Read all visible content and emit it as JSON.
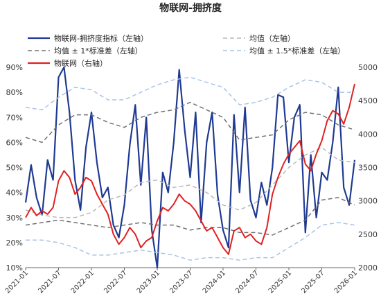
{
  "chart_data": {
    "type": "line",
    "title": "物联网-拥挤度",
    "x_range": [
      "2021-01",
      "2026-01"
    ],
    "x_ticks": [
      "2021-01",
      "2021-07",
      "2022-01",
      "2022-07",
      "2023-01",
      "2023-07",
      "2024-01",
      "2024-07",
      "2025-01",
      "2025-07",
      "2026-01"
    ],
    "y_left": {
      "ticks": [
        "10%",
        "20%",
        "30%",
        "40%",
        "50%",
        "60%",
        "70%",
        "80%",
        "90%"
      ],
      "range": [
        10,
        90
      ],
      "unit": "%"
    },
    "y_right": {
      "ticks": [
        "2000",
        "2500",
        "3000",
        "3500",
        "4000",
        "4500",
        "5000"
      ],
      "range": [
        2000,
        5000
      ]
    },
    "legend_position": "top",
    "series": [
      {
        "name": "物联网-拥挤度指标（左轴）",
        "axis": "left",
        "color": "#1f3a93",
        "style": "solid",
        "width": 2.2,
        "points": [
          [
            "2021-01",
            36
          ],
          [
            "2021-02",
            51
          ],
          [
            "2021-03",
            38
          ],
          [
            "2021-04",
            31
          ],
          [
            "2021-05",
            53
          ],
          [
            "2021-06",
            45
          ],
          [
            "2021-07",
            86
          ],
          [
            "2021-08",
            90
          ],
          [
            "2021-09",
            72
          ],
          [
            "2021-10",
            45
          ],
          [
            "2021-11",
            33
          ],
          [
            "2021-12",
            58
          ],
          [
            "2022-01",
            72
          ],
          [
            "2022-02",
            52
          ],
          [
            "2022-03",
            38
          ],
          [
            "2022-04",
            42
          ],
          [
            "2022-05",
            27
          ],
          [
            "2022-06",
            22
          ],
          [
            "2022-07",
            35
          ],
          [
            "2022-08",
            59
          ],
          [
            "2022-09",
            75
          ],
          [
            "2022-10",
            43
          ],
          [
            "2022-11",
            70
          ],
          [
            "2022-12",
            25
          ],
          [
            "2023-01",
            10
          ],
          [
            "2023-02",
            48
          ],
          [
            "2023-03",
            40
          ],
          [
            "2023-04",
            60
          ],
          [
            "2023-05",
            89
          ],
          [
            "2023-06",
            65
          ],
          [
            "2023-07",
            46
          ],
          [
            "2023-08",
            72
          ],
          [
            "2023-09",
            28
          ],
          [
            "2023-10",
            60
          ],
          [
            "2023-11",
            72
          ],
          [
            "2023-12",
            39
          ],
          [
            "2024-01",
            25
          ],
          [
            "2024-02",
            18
          ],
          [
            "2024-03",
            71
          ],
          [
            "2024-04",
            40
          ],
          [
            "2024-05",
            74
          ],
          [
            "2024-06",
            37
          ],
          [
            "2024-07",
            30
          ],
          [
            "2024-08",
            44
          ],
          [
            "2024-09",
            35
          ],
          [
            "2024-10",
            50
          ],
          [
            "2024-11",
            79
          ],
          [
            "2024-12",
            78
          ],
          [
            "2025-01",
            52
          ],
          [
            "2025-02",
            70
          ],
          [
            "2025-03",
            75
          ],
          [
            "2025-04",
            24
          ],
          [
            "2025-05",
            55
          ],
          [
            "2025-06",
            30
          ],
          [
            "2025-07",
            48
          ],
          [
            "2025-08",
            45
          ],
          [
            "2025-09",
            60
          ],
          [
            "2025-10",
            82
          ],
          [
            "2025-11",
            42
          ],
          [
            "2025-12",
            35
          ],
          [
            "2026-01",
            53
          ]
        ]
      },
      {
        "name": "均值（左轴）",
        "axis": "left",
        "color": "#b9b9b9",
        "style": "dash",
        "width": 1.5,
        "points": [
          [
            "2021-01",
            33
          ],
          [
            "2021-04",
            31
          ],
          [
            "2021-07",
            30
          ],
          [
            "2021-10",
            30
          ],
          [
            "2022-01",
            32
          ],
          [
            "2022-04",
            37
          ],
          [
            "2022-07",
            39
          ],
          [
            "2022-10",
            44
          ],
          [
            "2023-01",
            45
          ],
          [
            "2023-04",
            42
          ],
          [
            "2023-07",
            43
          ],
          [
            "2023-10",
            40
          ],
          [
            "2024-01",
            35
          ],
          [
            "2024-04",
            33
          ],
          [
            "2024-07",
            36
          ],
          [
            "2024-10",
            43
          ],
          [
            "2025-01",
            50
          ],
          [
            "2025-04",
            55
          ],
          [
            "2025-07",
            58
          ],
          [
            "2025-10",
            53
          ],
          [
            "2026-01",
            52
          ]
        ]
      },
      {
        "name": "均值±1*标准差（左轴）",
        "axis": "left",
        "color": "#707070",
        "style": "dash",
        "width": 1.5,
        "points": [
          [
            "2021-01",
            62
          ],
          [
            "2021-04",
            60
          ],
          [
            "2021-07",
            67
          ],
          [
            "2021-10",
            71
          ],
          [
            "2022-01",
            71
          ],
          [
            "2022-04",
            68
          ],
          [
            "2022-07",
            66
          ],
          [
            "2022-10",
            70
          ],
          [
            "2023-01",
            72
          ],
          [
            "2023-04",
            73
          ],
          [
            "2023-07",
            76
          ],
          [
            "2023-10",
            73
          ],
          [
            "2024-01",
            70
          ],
          [
            "2024-04",
            61
          ],
          [
            "2024-07",
            62
          ],
          [
            "2024-10",
            63
          ],
          [
            "2025-01",
            69
          ],
          [
            "2025-04",
            72
          ],
          [
            "2025-07",
            71
          ],
          [
            "2025-10",
            67
          ],
          [
            "2026-01",
            65
          ]
        ]
      },
      {
        "name": "均值±1*标准差（左轴）_lower",
        "axis": "left",
        "color": "#707070",
        "style": "dash",
        "width": 1.5,
        "points": [
          [
            "2021-01",
            27
          ],
          [
            "2021-04",
            28
          ],
          [
            "2021-07",
            29
          ],
          [
            "2021-10",
            28
          ],
          [
            "2022-01",
            27
          ],
          [
            "2022-04",
            26
          ],
          [
            "2022-07",
            27
          ],
          [
            "2022-10",
            28
          ],
          [
            "2023-01",
            27
          ],
          [
            "2023-04",
            27
          ],
          [
            "2023-07",
            25
          ],
          [
            "2023-10",
            26
          ],
          [
            "2024-01",
            26
          ],
          [
            "2024-04",
            24
          ],
          [
            "2024-07",
            24
          ],
          [
            "2024-10",
            23
          ],
          [
            "2025-01",
            26
          ],
          [
            "2025-04",
            29
          ],
          [
            "2025-07",
            37
          ],
          [
            "2025-10",
            38
          ],
          [
            "2026-01",
            35
          ]
        ]
      },
      {
        "name": "均值±1.5*标准差（左轴）",
        "axis": "left",
        "color": "#a9c3e6",
        "style": "dash",
        "width": 1.5,
        "points": [
          [
            "2021-01",
            74
          ],
          [
            "2021-04",
            73
          ],
          [
            "2021-07",
            78
          ],
          [
            "2021-10",
            82
          ],
          [
            "2022-01",
            81
          ],
          [
            "2022-04",
            77
          ],
          [
            "2022-07",
            77
          ],
          [
            "2022-10",
            80
          ],
          [
            "2023-01",
            83
          ],
          [
            "2023-04",
            85
          ],
          [
            "2023-07",
            86
          ],
          [
            "2023-10",
            84
          ],
          [
            "2024-01",
            82
          ],
          [
            "2024-04",
            75
          ],
          [
            "2024-07",
            76
          ],
          [
            "2024-10",
            78
          ],
          [
            "2025-01",
            82
          ],
          [
            "2025-04",
            85
          ],
          [
            "2025-07",
            84
          ],
          [
            "2025-10",
            80
          ],
          [
            "2026-01",
            80
          ]
        ]
      },
      {
        "name": "均值±1.5*标准差（左轴）_lower",
        "axis": "left",
        "color": "#a9c3e6",
        "style": "dash",
        "width": 1.5,
        "points": [
          [
            "2021-01",
            21
          ],
          [
            "2021-04",
            21
          ],
          [
            "2021-07",
            20
          ],
          [
            "2021-10",
            18
          ],
          [
            "2022-01",
            15
          ],
          [
            "2022-04",
            15
          ],
          [
            "2022-07",
            16
          ],
          [
            "2022-10",
            17
          ],
          [
            "2023-01",
            16
          ],
          [
            "2023-04",
            15
          ],
          [
            "2023-07",
            13
          ],
          [
            "2023-10",
            14
          ],
          [
            "2024-01",
            14
          ],
          [
            "2024-04",
            13
          ],
          [
            "2024-07",
            14
          ],
          [
            "2024-10",
            14
          ],
          [
            "2025-01",
            18
          ],
          [
            "2025-04",
            22
          ],
          [
            "2025-07",
            27
          ],
          [
            "2025-10",
            28
          ],
          [
            "2026-01",
            27
          ]
        ]
      },
      {
        "name": "物联网（右轴）",
        "axis": "right",
        "color": "#e02020",
        "style": "solid",
        "width": 2,
        "points": [
          [
            "2021-01",
            2750
          ],
          [
            "2021-02",
            2900
          ],
          [
            "2021-03",
            2780
          ],
          [
            "2021-04",
            2850
          ],
          [
            "2021-05",
            2800
          ],
          [
            "2021-06",
            2900
          ],
          [
            "2021-07",
            3300
          ],
          [
            "2021-08",
            3450
          ],
          [
            "2021-09",
            3350
          ],
          [
            "2021-10",
            3100
          ],
          [
            "2021-11",
            3200
          ],
          [
            "2021-12",
            3350
          ],
          [
            "2022-01",
            3300
          ],
          [
            "2022-02",
            3100
          ],
          [
            "2022-03",
            2950
          ],
          [
            "2022-04",
            2800
          ],
          [
            "2022-05",
            2500
          ],
          [
            "2022-06",
            2350
          ],
          [
            "2022-07",
            2450
          ],
          [
            "2022-08",
            2600
          ],
          [
            "2022-09",
            2500
          ],
          [
            "2022-10",
            2300
          ],
          [
            "2022-11",
            2400
          ],
          [
            "2022-12",
            2450
          ],
          [
            "2023-01",
            2700
          ],
          [
            "2023-02",
            2900
          ],
          [
            "2023-03",
            2850
          ],
          [
            "2023-04",
            2950
          ],
          [
            "2023-05",
            3100
          ],
          [
            "2023-06",
            3000
          ],
          [
            "2023-07",
            2950
          ],
          [
            "2023-08",
            2850
          ],
          [
            "2023-09",
            2700
          ],
          [
            "2023-10",
            2550
          ],
          [
            "2023-11",
            2600
          ],
          [
            "2023-12",
            2450
          ],
          [
            "2024-01",
            2300
          ],
          [
            "2024-02",
            2200
          ],
          [
            "2024-03",
            2550
          ],
          [
            "2024-04",
            2600
          ],
          [
            "2024-05",
            2450
          ],
          [
            "2024-06",
            2500
          ],
          [
            "2024-07",
            2400
          ],
          [
            "2024-08",
            2350
          ],
          [
            "2024-09",
            2600
          ],
          [
            "2024-10",
            3100
          ],
          [
            "2024-11",
            3350
          ],
          [
            "2024-12",
            3550
          ],
          [
            "2025-01",
            3700
          ],
          [
            "2025-02",
            3800
          ],
          [
            "2025-03",
            3900
          ],
          [
            "2025-04",
            3550
          ],
          [
            "2025-05",
            3450
          ],
          [
            "2025-06",
            3700
          ],
          [
            "2025-07",
            3900
          ],
          [
            "2025-08",
            4200
          ],
          [
            "2025-09",
            4350
          ],
          [
            "2025-10",
            4300
          ],
          [
            "2025-11",
            4150
          ],
          [
            "2025-12",
            4400
          ],
          [
            "2026-01",
            4750
          ]
        ]
      }
    ],
    "legend": [
      {
        "label": "物联网-拥挤度指标（左轴）",
        "color": "#1f3a93",
        "style": "solid"
      },
      {
        "label": "均值（左轴）",
        "color": "#b9b9b9",
        "style": "dash"
      },
      {
        "label": "均值 ± 1*标准差（左轴）",
        "color": "#707070",
        "style": "dash"
      },
      {
        "label": "均值 ± 1.5*标准差（左轴）",
        "color": "#a9c3e6",
        "style": "dash"
      },
      {
        "label": "物联网（右轴）",
        "color": "#e02020",
        "style": "solid"
      }
    ]
  }
}
